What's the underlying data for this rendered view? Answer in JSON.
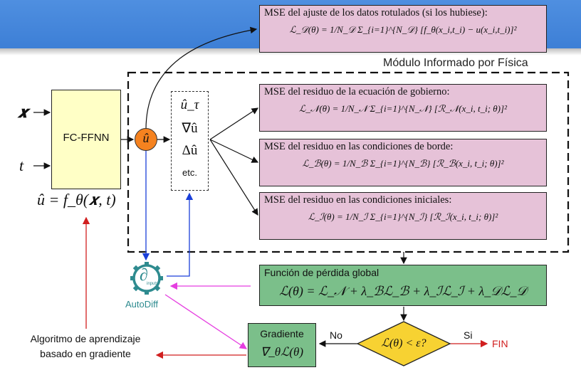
{
  "module_label": "Módulo Informado por Física",
  "inputs": {
    "x": "𝒙",
    "t": "t"
  },
  "network": {
    "label": "FC-FFNN",
    "output_formula": "û = f_θ(𝒙, t)"
  },
  "u_hat": "û",
  "derivatives": {
    "d1": "û_τ",
    "d2": "∇û",
    "d3": "Δû",
    "etc": "etc."
  },
  "mse_data": {
    "title": "MSE del ajuste de los datos rotulados (si los hubiese):",
    "formula": "ℒ_𝒟(θ) = 1/N_𝒟 Σ_{i=1}^{N_𝒟} [f_θ(x_i,t_i) − u(x_i,t_i)]²"
  },
  "mse_pde": {
    "title": "MSE del residuo de la ecuación de gobierno:",
    "formula": "ℒ_𝒩(θ) = 1/N_𝒩 Σ_{i=1}^{N_𝒩} [ℛ_𝒩(x_i, t_i; θ)]²"
  },
  "mse_bc": {
    "title": "MSE del residuo en las condiciones de borde:",
    "formula": "ℒ_ℬ(θ) = 1/N_ℬ Σ_{i=1}^{N_ℬ} [ℛ_ℬ(x_i, t_i; θ)]²"
  },
  "mse_ic": {
    "title": "MSE del residuo en las condiciones iniciales:",
    "formula": "ℒ_ℐ(θ) = 1/N_ℐ Σ_{i=1}^{N_ℐ} [ℛ_ℐ(x_i, t_i; θ)]²"
  },
  "loss": {
    "title": "Función de pérdida global",
    "formula": "ℒ(θ) = ℒ_𝒩 + λ_ℬℒ_ℬ + λ_ℐℒ_ℐ + λ_𝒟ℒ_𝒟"
  },
  "autodiff": {
    "symbol": "∂",
    "sub": "inputs",
    "label": "AutoDiff"
  },
  "gradient": {
    "title": "Gradiente",
    "formula": "∇_θℒ(θ)"
  },
  "decision": {
    "formula": "ℒ(θ) < ε?",
    "no": "No",
    "yes": "Si",
    "end": "FIN"
  },
  "optimizer": {
    "line1": "Algoritmo de aprendizaje",
    "line2": "basado en gradiente"
  },
  "colors": {
    "mse_fill": "#e6c2d8",
    "loss_fill": "#7bbf8a",
    "node_fill": "#f5821f",
    "decision_fill": "#f7d232",
    "fcnn_fill": "#ffffc6",
    "autodiff_teal": "#2e8b8f",
    "red": "#d11f1f",
    "blue": "#1a3fd9",
    "magenta": "#e53ee0"
  }
}
